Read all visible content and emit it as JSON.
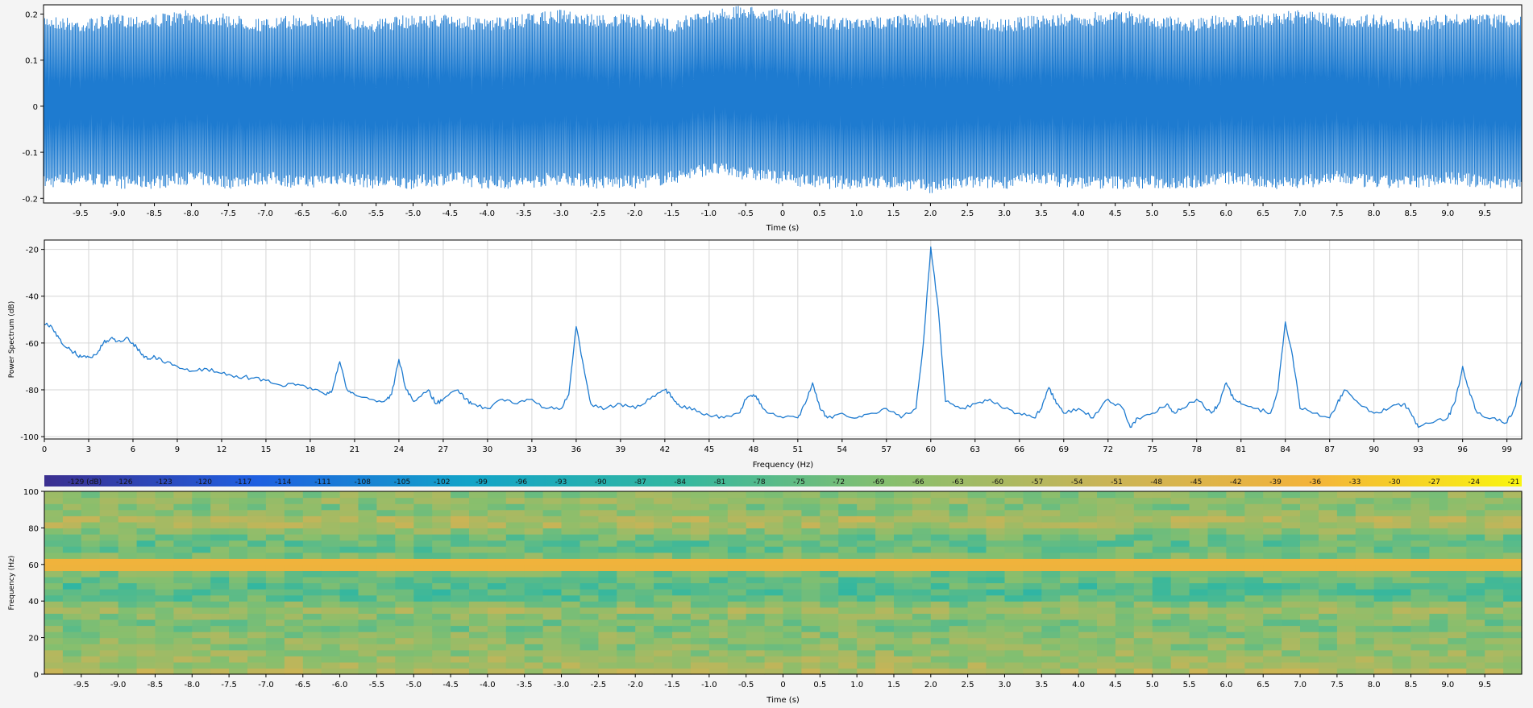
{
  "colors": {
    "accent": "#1e7bd0",
    "grid": "#d6d6d6",
    "plot_bg": "#ffffff",
    "panel_bg": "#f4f4f4",
    "axis": "#000000",
    "colormap": [
      "#3b2f8f",
      "#1f5fe0",
      "#12a3c8",
      "#33b7a0",
      "#86bf6e",
      "#c8b457",
      "#f3b33a",
      "#f9f50f"
    ]
  },
  "chart_data": [
    {
      "type": "line",
      "name": "waveform",
      "xlabel": "Time (s)",
      "ylabel": "",
      "xlim": [
        -10,
        10
      ],
      "ylim": [
        -0.21,
        0.22
      ],
      "x_tick_labels": [
        "-9.5",
        "-9.0",
        "-8.5",
        "-8.0",
        "-7.5",
        "-7.0",
        "-6.5",
        "-6.0",
        "-5.5",
        "-5.0",
        "-4.5",
        "-4.0",
        "-3.5",
        "-3.0",
        "-2.5",
        "-2.0",
        "-1.5",
        "-1.0",
        "-0.5",
        "0",
        "0.5",
        "1.0",
        "1.5",
        "2.0",
        "2.5",
        "3.0",
        "3.5",
        "4.0",
        "4.5",
        "5.0",
        "5.5",
        "6.0",
        "6.5",
        "7.0",
        "7.5",
        "8.0",
        "8.5",
        "9.0",
        "9.5"
      ],
      "y_ticks": [
        0.2,
        0.1,
        0,
        -0.1,
        -0.2
      ],
      "y_tick_labels": [
        "0.2",
        "0.1",
        "0",
        "-0.1",
        "-0.2"
      ],
      "envelope_upper": [
        0.2,
        0.19,
        0.2,
        0.2,
        0.21,
        0.2,
        0.19,
        0.2,
        0.2,
        0.19,
        0.2,
        0.2,
        0.19,
        0.2,
        0.21,
        0.2,
        0.2,
        0.19,
        0.21,
        0.22,
        0.21,
        0.2,
        0.19,
        0.2,
        0.2,
        0.2,
        0.19,
        0.2,
        0.2,
        0.21,
        0.2,
        0.19,
        0.2,
        0.2,
        0.21,
        0.2,
        0.2,
        0.19,
        0.2,
        0.2,
        0.2
      ],
      "envelope_lower": [
        -0.18,
        -0.17,
        -0.18,
        -0.18,
        -0.17,
        -0.18,
        -0.17,
        -0.18,
        -0.17,
        -0.18,
        -0.18,
        -0.17,
        -0.18,
        -0.18,
        -0.17,
        -0.18,
        -0.18,
        -0.17,
        -0.15,
        -0.16,
        -0.17,
        -0.18,
        -0.18,
        -0.18,
        -0.19,
        -0.18,
        -0.18,
        -0.17,
        -0.18,
        -0.18,
        -0.18,
        -0.18,
        -0.17,
        -0.18,
        -0.18,
        -0.17,
        -0.18,
        -0.18,
        -0.17,
        -0.18,
        -0.18
      ],
      "grid": false
    },
    {
      "type": "line",
      "name": "power-spectrum",
      "xlabel": "Frequency (Hz)",
      "ylabel": "Power Spectrum (dB)",
      "xlim": [
        0,
        100
      ],
      "ylim": [
        -101,
        -16
      ],
      "x_ticks": [
        0,
        3,
        6,
        9,
        12,
        15,
        18,
        21,
        24,
        27,
        30,
        33,
        36,
        39,
        42,
        45,
        48,
        51,
        54,
        57,
        60,
        63,
        66,
        69,
        72,
        75,
        78,
        81,
        84,
        87,
        90,
        93,
        96,
        99
      ],
      "x_tick_labels": [
        "0",
        "3",
        "6",
        "9",
        "12",
        "15",
        "18",
        "21",
        "24",
        "27",
        "30",
        "33",
        "36",
        "39",
        "42",
        "45",
        "48",
        "51",
        "54",
        "57",
        "60",
        "63",
        "66",
        "69",
        "72",
        "75",
        "78",
        "81",
        "84",
        "87",
        "90",
        "93",
        "96",
        "99"
      ],
      "y_ticks": [
        -20,
        -40,
        -60,
        -80,
        -100
      ],
      "y_tick_labels": [
        "-20",
        "-40",
        "-60",
        "-80",
        "-100"
      ],
      "grid": true,
      "points": [
        [
          0,
          -52
        ],
        [
          0.5,
          -53
        ],
        [
          1,
          -58
        ],
        [
          1.5,
          -62
        ],
        [
          2,
          -64
        ],
        [
          2.5,
          -66
        ],
        [
          3,
          -66
        ],
        [
          3.5,
          -65
        ],
        [
          4,
          -60
        ],
        [
          4.5,
          -58
        ],
        [
          5,
          -59
        ],
        [
          5.5,
          -58
        ],
        [
          6,
          -60
        ],
        [
          6.5,
          -64
        ],
        [
          7,
          -67
        ],
        [
          7.5,
          -66
        ],
        [
          8,
          -68
        ],
        [
          9,
          -70
        ],
        [
          10,
          -72
        ],
        [
          11,
          -71
        ],
        [
          12,
          -73
        ],
        [
          13,
          -74
        ],
        [
          14,
          -75
        ],
        [
          15,
          -76
        ],
        [
          16,
          -78
        ],
        [
          17,
          -78
        ],
        [
          18,
          -79
        ],
        [
          19,
          -82
        ],
        [
          19.5,
          -80
        ],
        [
          20,
          -68
        ],
        [
          20.5,
          -80
        ],
        [
          21,
          -82
        ],
        [
          22,
          -84
        ],
        [
          23,
          -85
        ],
        [
          23.5,
          -82
        ],
        [
          24,
          -67
        ],
        [
          24.5,
          -80
        ],
        [
          25,
          -85
        ],
        [
          26,
          -80
        ],
        [
          26.5,
          -86
        ],
        [
          27,
          -84
        ],
        [
          28,
          -80
        ],
        [
          28.5,
          -84
        ],
        [
          29,
          -86
        ],
        [
          30,
          -88
        ],
        [
          31,
          -84
        ],
        [
          32,
          -86
        ],
        [
          33,
          -84
        ],
        [
          34,
          -88
        ],
        [
          35,
          -88
        ],
        [
          35.5,
          -82
        ],
        [
          36,
          -53
        ],
        [
          36.5,
          -70
        ],
        [
          37,
          -86
        ],
        [
          38,
          -88
        ],
        [
          39,
          -86
        ],
        [
          40,
          -88
        ],
        [
          41,
          -84
        ],
        [
          42,
          -80
        ],
        [
          42.5,
          -83
        ],
        [
          43,
          -87
        ],
        [
          44,
          -88
        ],
        [
          45,
          -91
        ],
        [
          46,
          -92
        ],
        [
          47,
          -90
        ],
        [
          47.5,
          -84
        ],
        [
          48,
          -82
        ],
        [
          48.5,
          -86
        ],
        [
          49,
          -90
        ],
        [
          50,
          -92
        ],
        [
          51,
          -92
        ],
        [
          51.5,
          -86
        ],
        [
          52,
          -77
        ],
        [
          52.5,
          -88
        ],
        [
          53,
          -92
        ],
        [
          54,
          -90
        ],
        [
          55,
          -92
        ],
        [
          56,
          -90
        ],
        [
          57,
          -88
        ],
        [
          58,
          -92
        ],
        [
          59,
          -88
        ],
        [
          59.5,
          -60
        ],
        [
          60,
          -19
        ],
        [
          60.5,
          -45
        ],
        [
          61,
          -85
        ],
        [
          62,
          -88
        ],
        [
          63,
          -86
        ],
        [
          64,
          -84
        ],
        [
          65,
          -88
        ],
        [
          66,
          -90
        ],
        [
          67,
          -92
        ],
        [
          67.5,
          -88
        ],
        [
          68,
          -79
        ],
        [
          68.5,
          -86
        ],
        [
          69,
          -90
        ],
        [
          70,
          -88
        ],
        [
          71,
          -92
        ],
        [
          72,
          -84
        ],
        [
          73,
          -88
        ],
        [
          73.5,
          -96
        ],
        [
          74,
          -92
        ],
        [
          75,
          -90
        ],
        [
          76,
          -86
        ],
        [
          76.5,
          -90
        ],
        [
          77,
          -88
        ],
        [
          78,
          -84
        ],
        [
          79,
          -90
        ],
        [
          79.5,
          -86
        ],
        [
          80,
          -77
        ],
        [
          80.5,
          -84
        ],
        [
          81,
          -86
        ],
        [
          82,
          -88
        ],
        [
          83,
          -90
        ],
        [
          83.5,
          -80
        ],
        [
          84,
          -51
        ],
        [
          84.5,
          -66
        ],
        [
          85,
          -88
        ],
        [
          86,
          -90
        ],
        [
          87,
          -92
        ],
        [
          87.5,
          -86
        ],
        [
          88,
          -80
        ],
        [
          89,
          -86
        ],
        [
          90,
          -90
        ],
        [
          91,
          -88
        ],
        [
          92,
          -86
        ],
        [
          92.5,
          -90
        ],
        [
          93,
          -96
        ],
        [
          94,
          -94
        ],
        [
          95,
          -92
        ],
        [
          95.5,
          -85
        ],
        [
          96,
          -70
        ],
        [
          96.5,
          -82
        ],
        [
          97,
          -90
        ],
        [
          98,
          -92
        ],
        [
          99,
          -94
        ],
        [
          99.5,
          -88
        ],
        [
          100,
          -76
        ]
      ]
    },
    {
      "type": "heatmap",
      "name": "spectrogram",
      "xlabel": "Time (s)",
      "ylabel": "Frequency (Hz)",
      "xlim": [
        -10,
        10
      ],
      "ylim": [
        0,
        100
      ],
      "x_tick_labels": [
        "-9.5",
        "-9.0",
        "-8.5",
        "-8.0",
        "-7.5",
        "-7.0",
        "-6.5",
        "-6.0",
        "-5.5",
        "-5.0",
        "-4.5",
        "-4.0",
        "-3.5",
        "-3.0",
        "-2.5",
        "-2.0",
        "-1.5",
        "-1.0",
        "-0.5",
        "0",
        "0.5",
        "1.0",
        "1.5",
        "2.0",
        "2.5",
        "3.0",
        "3.5",
        "4.0",
        "4.5",
        "5.0",
        "5.5",
        "6.0",
        "6.5",
        "7.0",
        "7.5",
        "8.0",
        "8.5",
        "9.0",
        "9.5"
      ],
      "y_ticks": [
        100,
        80,
        60,
        40,
        20,
        0
      ],
      "y_tick_labels": [
        "100",
        "80",
        "60",
        "40",
        "20",
        "0"
      ],
      "colorbar_range_db": [
        -130,
        -19
      ],
      "colorbar_labels": [
        "-129 (dB)",
        "-126",
        "-123",
        "-120",
        "-117",
        "-114",
        "-111",
        "-108",
        "-105",
        "-102",
        "-99",
        "-96",
        "-93",
        "-90",
        "-87",
        "-84",
        "-81",
        "-78",
        "-75",
        "-72",
        "-69",
        "-66",
        "-63",
        "-60",
        "-57",
        "-54",
        "-51",
        "-48",
        "-45",
        "-42",
        "-39",
        "-36",
        "-33",
        "-30",
        "-27",
        "-24",
        "-21"
      ],
      "band_profile_db": [
        [
          0,
          -55
        ],
        [
          5,
          -60
        ],
        [
          10,
          -62
        ],
        [
          15,
          -65
        ],
        [
          20,
          -64
        ],
        [
          25,
          -68
        ],
        [
          30,
          -68
        ],
        [
          36,
          -60
        ],
        [
          40,
          -72
        ],
        [
          45,
          -76
        ],
        [
          50,
          -75
        ],
        [
          55,
          -70
        ],
        [
          60,
          -20
        ],
        [
          65,
          -68
        ],
        [
          70,
          -74
        ],
        [
          75,
          -70
        ],
        [
          84,
          -55
        ],
        [
          90,
          -68
        ],
        [
          96,
          -62
        ],
        [
          100,
          -66
        ]
      ]
    }
  ]
}
